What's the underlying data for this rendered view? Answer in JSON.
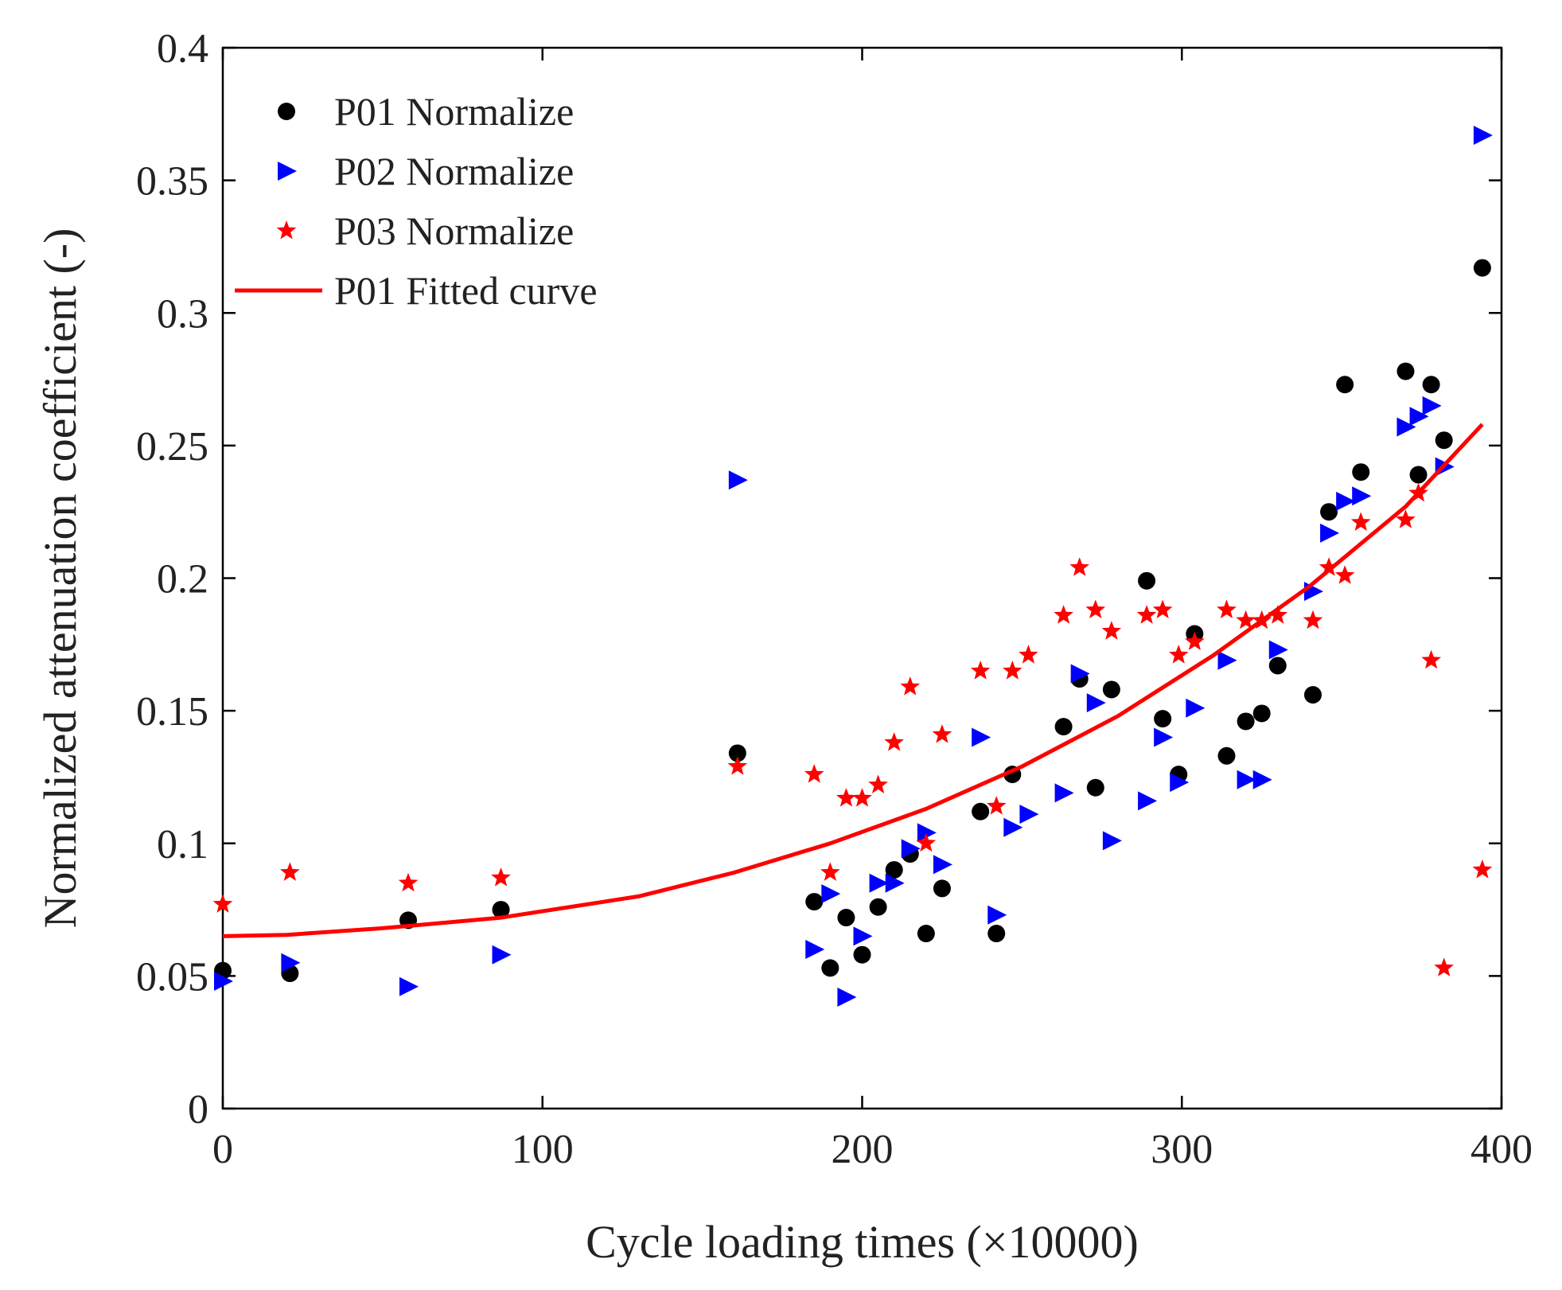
{
  "chart_data": {
    "type": "scatter",
    "title": "",
    "xlabel": "Cycle loading times (×10000)",
    "ylabel": "Normalized attenuation coefficient (-)",
    "xlim": [
      0,
      400
    ],
    "ylim": [
      0,
      0.4
    ],
    "xticks": [
      0,
      100,
      200,
      300,
      400
    ],
    "xtick_labels": [
      "0",
      "100",
      "200",
      "300",
      "400"
    ],
    "yticks": [
      0,
      0.05,
      0.1,
      0.15,
      0.2,
      0.25,
      0.3,
      0.35,
      0.4
    ],
    "ytick_labels": [
      "0",
      "0.05",
      "0.1",
      "0.15",
      "0.2",
      "0.25",
      "0.3",
      "0.35",
      "0.4"
    ],
    "grid": false,
    "legend_position": "top-left",
    "series": [
      {
        "name": "P01 Normalize",
        "kind": "scatter",
        "marker": "circle",
        "color": "#000000",
        "points": [
          [
            0,
            0.052
          ],
          [
            21,
            0.051
          ],
          [
            58,
            0.071
          ],
          [
            87,
            0.075
          ],
          [
            161,
            0.134
          ],
          [
            185,
            0.078
          ],
          [
            190,
            0.053
          ],
          [
            195,
            0.072
          ],
          [
            200,
            0.058
          ],
          [
            205,
            0.076
          ],
          [
            210,
            0.09
          ],
          [
            215,
            0.096
          ],
          [
            220,
            0.066
          ],
          [
            225,
            0.083
          ],
          [
            237,
            0.112
          ],
          [
            242,
            0.066
          ],
          [
            247,
            0.126
          ],
          [
            263,
            0.144
          ],
          [
            268,
            0.162
          ],
          [
            273,
            0.121
          ],
          [
            278,
            0.158
          ],
          [
            289,
            0.199
          ],
          [
            294,
            0.147
          ],
          [
            299,
            0.126
          ],
          [
            304,
            0.179
          ],
          [
            314,
            0.133
          ],
          [
            320,
            0.146
          ],
          [
            325,
            0.149
          ],
          [
            330,
            0.167
          ],
          [
            341,
            0.156
          ],
          [
            346,
            0.225
          ],
          [
            351,
            0.273
          ],
          [
            356,
            0.24
          ],
          [
            370,
            0.278
          ],
          [
            374,
            0.239
          ],
          [
            378,
            0.273
          ],
          [
            382,
            0.252
          ],
          [
            394,
            0.317
          ]
        ]
      },
      {
        "name": "P02 Normalize",
        "kind": "scatter",
        "marker": "triangle-right",
        "color": "#0000ff",
        "points": [
          [
            0,
            0.048
          ],
          [
            21,
            0.055
          ],
          [
            58,
            0.046
          ],
          [
            87,
            0.058
          ],
          [
            161,
            0.237
          ],
          [
            185,
            0.06
          ],
          [
            190,
            0.081
          ],
          [
            195,
            0.042
          ],
          [
            200,
            0.065
          ],
          [
            205,
            0.085
          ],
          [
            210,
            0.085
          ],
          [
            215,
            0.098
          ],
          [
            220,
            0.104
          ],
          [
            225,
            0.092
          ],
          [
            237,
            0.14
          ],
          [
            242,
            0.073
          ],
          [
            247,
            0.106
          ],
          [
            252,
            0.111
          ],
          [
            263,
            0.119
          ],
          [
            268,
            0.164
          ],
          [
            273,
            0.153
          ],
          [
            278,
            0.101
          ],
          [
            289,
            0.116
          ],
          [
            294,
            0.14
          ],
          [
            299,
            0.123
          ],
          [
            304,
            0.151
          ],
          [
            314,
            0.169
          ],
          [
            320,
            0.124
          ],
          [
            325,
            0.124
          ],
          [
            330,
            0.173
          ],
          [
            341,
            0.195
          ],
          [
            346,
            0.217
          ],
          [
            351,
            0.229
          ],
          [
            356,
            0.231
          ],
          [
            370,
            0.257
          ],
          [
            374,
            0.261
          ],
          [
            378,
            0.265
          ],
          [
            382,
            0.242
          ],
          [
            394,
            0.367
          ]
        ]
      },
      {
        "name": "P03 Normalize",
        "kind": "scatter",
        "marker": "star",
        "color": "#ff0000",
        "points": [
          [
            0,
            0.077
          ],
          [
            21,
            0.089
          ],
          [
            58,
            0.085
          ],
          [
            87,
            0.087
          ],
          [
            161,
            0.129
          ],
          [
            185,
            0.126
          ],
          [
            190,
            0.089
          ],
          [
            195,
            0.117
          ],
          [
            200,
            0.117
          ],
          [
            205,
            0.122
          ],
          [
            210,
            0.138
          ],
          [
            215,
            0.159
          ],
          [
            220,
            0.1
          ],
          [
            225,
            0.141
          ],
          [
            237,
            0.165
          ],
          [
            242,
            0.114
          ],
          [
            247,
            0.165
          ],
          [
            252,
            0.171
          ],
          [
            263,
            0.186
          ],
          [
            268,
            0.204
          ],
          [
            273,
            0.188
          ],
          [
            278,
            0.18
          ],
          [
            289,
            0.186
          ],
          [
            294,
            0.188
          ],
          [
            299,
            0.171
          ],
          [
            304,
            0.176
          ],
          [
            314,
            0.188
          ],
          [
            320,
            0.184
          ],
          [
            325,
            0.184
          ],
          [
            330,
            0.186
          ],
          [
            341,
            0.184
          ],
          [
            346,
            0.204
          ],
          [
            351,
            0.201
          ],
          [
            356,
            0.221
          ],
          [
            370,
            0.222
          ],
          [
            374,
            0.232
          ],
          [
            378,
            0.169
          ],
          [
            382,
            0.053
          ],
          [
            394,
            0.09
          ]
        ]
      },
      {
        "name": "P01 Fitted curve",
        "kind": "line",
        "color": "#ff0000",
        "points": [
          [
            0,
            0.065
          ],
          [
            20,
            0.0655
          ],
          [
            50,
            0.068
          ],
          [
            87,
            0.072
          ],
          [
            130,
            0.08
          ],
          [
            160,
            0.089
          ],
          [
            190,
            0.1
          ],
          [
            220,
            0.113
          ],
          [
            250,
            0.129
          ],
          [
            280,
            0.148
          ],
          [
            310,
            0.171
          ],
          [
            340,
            0.197
          ],
          [
            370,
            0.227
          ],
          [
            394,
            0.258
          ]
        ]
      }
    ]
  }
}
